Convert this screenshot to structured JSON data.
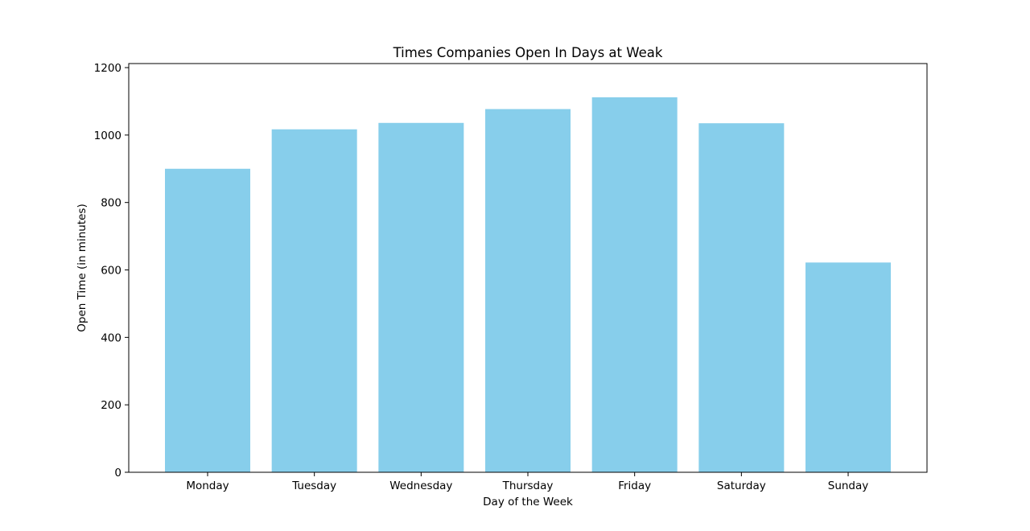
{
  "chart_data": {
    "type": "bar",
    "title": "Times Companies Open In Days at Weak",
    "xlabel": "Day of the Week",
    "ylabel": "Open Time (in minutes)",
    "categories": [
      "Monday",
      "Tuesday",
      "Wednesday",
      "Thursday",
      "Friday",
      "Saturday",
      "Sunday"
    ],
    "values": [
      900,
      1017,
      1036,
      1077,
      1112,
      1035,
      622
    ],
    "ylim": [
      0,
      1200
    ],
    "yticks": [
      0,
      200,
      400,
      600,
      800,
      1000,
      1200
    ],
    "bar_color": "#87ceeb",
    "grid": false,
    "legend": "none"
  }
}
